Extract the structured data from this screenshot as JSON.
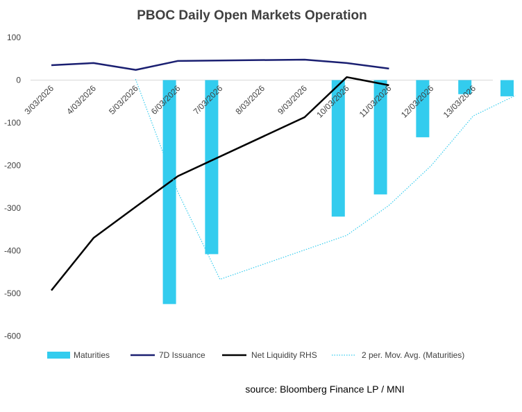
{
  "chart_data": {
    "type": "bar",
    "title": "PBOC Daily Open Markets Operation",
    "categories": [
      "3/03/2026",
      "4/03/2026",
      "5/03/2026",
      "6/03/2026",
      "7/03/2026",
      "8/03/2026",
      "9/03/2026",
      "10/03/2026",
      "11/03/2026",
      "12/03/2026",
      "13/03/2026"
    ],
    "y_ticks": [
      "100",
      "0",
      "-100",
      "-200",
      "-300",
      "-400",
      "-500",
      "-600"
    ],
    "ylim": [
      -600,
      100
    ],
    "grid": false,
    "legend_position": "bottom",
    "series": [
      {
        "name": "Maturities",
        "kind": "bar",
        "color": "#33CCEE",
        "values": [
          null,
          null,
          -525,
          -408,
          null,
          null,
          -320,
          -268,
          -134,
          -33,
          -38
        ]
      },
      {
        "name": "7D Issuance",
        "kind": "line",
        "color": "#1A1F71",
        "values": [
          35,
          40,
          24,
          45,
          null,
          null,
          48,
          40,
          27,
          null,
          null
        ]
      },
      {
        "name": "Net Liquidity RHS",
        "kind": "line",
        "color": "#000000",
        "values": [
          -493,
          -370,
          -297,
          -225,
          null,
          null,
          -87,
          7,
          -12,
          null,
          null
        ]
      },
      {
        "name": "2 per. Mov. Avg. (Maturities)",
        "kind": "dotted",
        "color": "#33CCEE",
        "values": [
          null,
          2,
          -262,
          -467,
          null,
          null,
          -364,
          -294,
          -201,
          -84,
          -36
        ]
      }
    ]
  },
  "source": "source:  Bloomberg Finance LP / MNI"
}
